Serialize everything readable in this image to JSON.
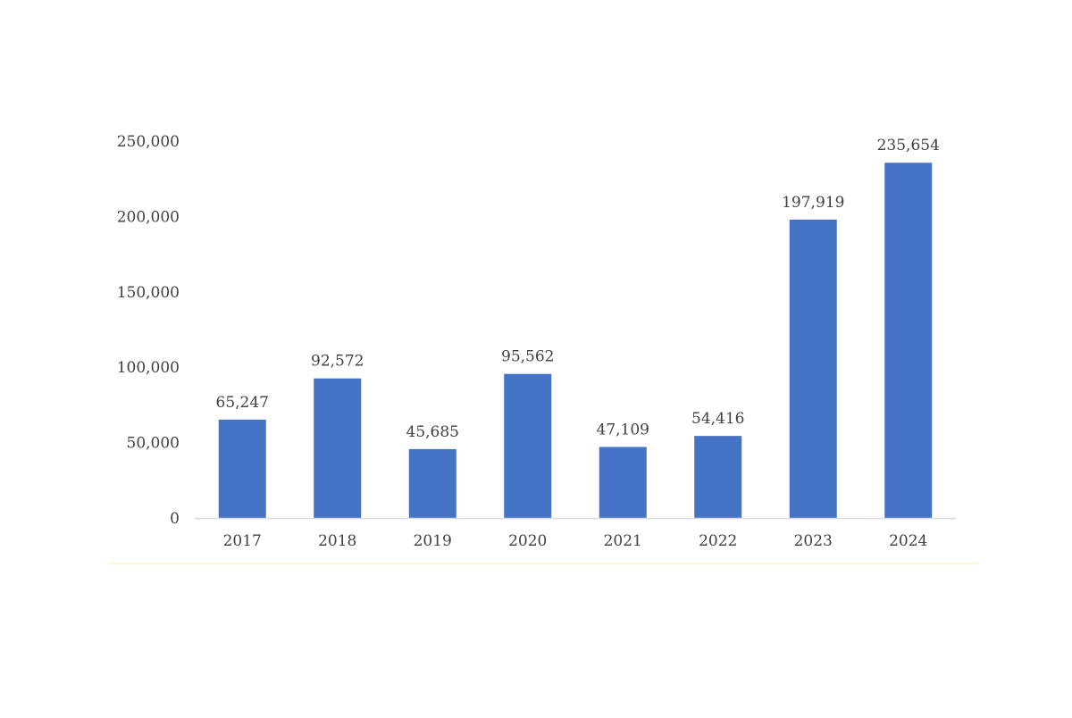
{
  "chart_data": {
    "type": "bar",
    "categories": [
      "2017",
      "2018",
      "2019",
      "2020",
      "2021",
      "2022",
      "2023",
      "2024"
    ],
    "values": [
      65247,
      92572,
      45685,
      95562,
      47109,
      54416,
      197919,
      235654
    ],
    "data_labels": [
      "65,247",
      "92,572",
      "45,685",
      "95,562",
      "47,109",
      "54,416",
      "197,919",
      "235,654"
    ],
    "y_ticks": [
      0,
      50000,
      100000,
      150000,
      200000,
      250000
    ],
    "y_tick_labels": [
      "0",
      "50,000",
      "100,000",
      "150,000",
      "200,000",
      "250,000"
    ],
    "ylim": [
      0,
      250000
    ],
    "grid": false,
    "legend": "none",
    "bar_color": "#4472C4",
    "axis_color": "#D9D9D9",
    "frame_line_color": "#FFF2CC"
  }
}
